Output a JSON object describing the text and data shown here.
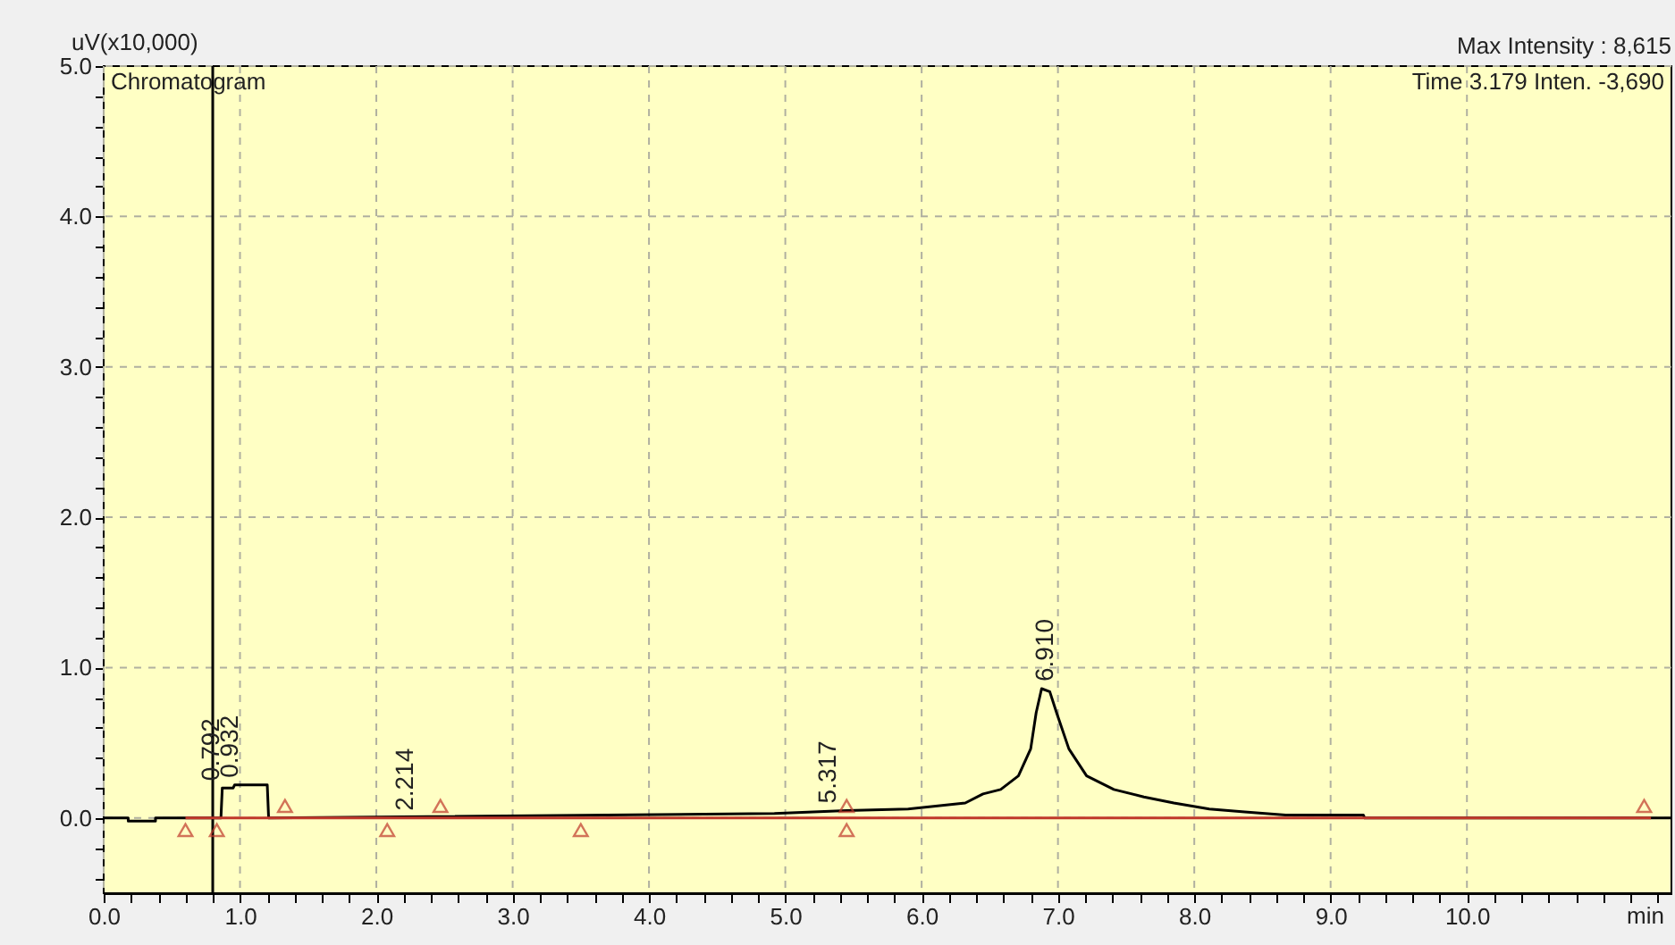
{
  "chart_data": {
    "type": "line",
    "title": "Chromatogram",
    "xlabel": "min",
    "ylabel": "uV(x10,000)",
    "annotations": [
      "Max Intensity :  8,615",
      "Time   3.179   Inten.   -3,690",
      {
        "text": "0.792",
        "x": 0.792,
        "y": 0.2
      },
      {
        "text": "0.932",
        "x": 0.932,
        "y": 0.22
      },
      {
        "text": "2.214",
        "x": 2.214,
        "y": 0.0
      },
      {
        "text": "5.317",
        "x": 5.317,
        "y": 0.05
      },
      {
        "text": "6.910",
        "x": 6.91,
        "y": 0.86
      }
    ],
    "series": [
      {
        "color": "#000000",
        "x": [
          0.0,
          0.18,
          0.18,
          0.38,
          0.38,
          0.86,
          0.87,
          0.95,
          0.96,
          1.2,
          1.21,
          4.92,
          5.45,
          5.9,
          6.32,
          6.45,
          6.58,
          6.71,
          6.8,
          6.84,
          6.88,
          6.94,
          6.99,
          7.08,
          7.21,
          7.41,
          7.63,
          7.85,
          8.11,
          8.37,
          8.67,
          9.24,
          9.25,
          11.5
        ],
        "values": [
          0.0,
          0.0,
          -0.02,
          -0.02,
          0.0,
          0.0,
          0.2,
          0.2,
          0.22,
          0.22,
          0.0,
          0.03,
          0.05,
          0.06,
          0.1,
          0.16,
          0.19,
          0.28,
          0.46,
          0.7,
          0.86,
          0.84,
          0.7,
          0.46,
          0.28,
          0.19,
          0.14,
          0.1,
          0.06,
          0.04,
          0.02,
          0.02,
          0.0,
          0.0
        ]
      },
      {
        "color": "#c0392b",
        "x": [
          0.6,
          11.35
        ],
        "values": [
          0.0,
          0.0
        ]
      },
      {
        "type": "scatter",
        "marker": "triangle",
        "color": "#c0392b",
        "x": [
          0.6,
          0.83,
          2.08,
          3.5,
          5.45
        ],
        "values": [
          -0.08,
          -0.08,
          -0.08,
          -0.08,
          -0.08
        ]
      },
      {
        "type": "scatter",
        "marker": "triangle",
        "color": "#c0392b",
        "x": [
          1.33,
          2.47,
          5.45,
          11.3
        ],
        "values": [
          0.08,
          0.08,
          0.08,
          0.08
        ]
      }
    ],
    "ref_lines": [
      {
        "axis": "x",
        "value": 0.8,
        "color": "#000000"
      }
    ],
    "xlim": [
      0,
      11.5
    ],
    "ylim": [
      -0.5,
      5.0
    ],
    "xticks": [
      {
        "value": 0,
        "label": "0.0"
      },
      {
        "value": 0.2,
        "label": null
      },
      {
        "value": 0.4,
        "label": null
      },
      {
        "value": 0.6,
        "label": null
      },
      {
        "value": 0.8,
        "label": null
      },
      {
        "value": 1,
        "label": "1.0"
      },
      {
        "value": 1.2,
        "label": null
      },
      {
        "value": 1.4,
        "label": null
      },
      {
        "value": 1.6,
        "label": null
      },
      {
        "value": 1.8,
        "label": null
      },
      {
        "value": 2,
        "label": "2.0"
      },
      {
        "value": 2.2,
        "label": null
      },
      {
        "value": 2.4,
        "label": null
      },
      {
        "value": 2.6,
        "label": null
      },
      {
        "value": 2.8,
        "label": null
      },
      {
        "value": 3,
        "label": "3.0"
      },
      {
        "value": 3.2,
        "label": null
      },
      {
        "value": 3.4,
        "label": null
      },
      {
        "value": 3.6,
        "label": null
      },
      {
        "value": 3.8,
        "label": null
      },
      {
        "value": 4,
        "label": "4.0"
      },
      {
        "value": 4.2,
        "label": null
      },
      {
        "value": 4.4,
        "label": null
      },
      {
        "value": 4.6,
        "label": null
      },
      {
        "value": 4.8,
        "label": null
      },
      {
        "value": 5,
        "label": "5.0"
      },
      {
        "value": 5.2,
        "label": null
      },
      {
        "value": 5.4,
        "label": null
      },
      {
        "value": 5.6,
        "label": null
      },
      {
        "value": 5.8,
        "label": null
      },
      {
        "value": 6,
        "label": "6.0"
      },
      {
        "value": 6.2,
        "label": null
      },
      {
        "value": 6.4,
        "label": null
      },
      {
        "value": 6.6,
        "label": null
      },
      {
        "value": 6.8,
        "label": null
      },
      {
        "value": 7,
        "label": "7.0"
      },
      {
        "value": 7.2,
        "label": null
      },
      {
        "value": 7.4,
        "label": null
      },
      {
        "value": 7.6,
        "label": null
      },
      {
        "value": 7.8,
        "label": null
      },
      {
        "value": 8,
        "label": "8.0"
      },
      {
        "value": 8.2,
        "label": null
      },
      {
        "value": 8.4,
        "label": null
      },
      {
        "value": 8.6,
        "label": null
      },
      {
        "value": 8.8,
        "label": null
      },
      {
        "value": 9,
        "label": "9.0"
      },
      {
        "value": 9.2,
        "label": null
      },
      {
        "value": 9.4,
        "label": null
      },
      {
        "value": 9.6,
        "label": null
      },
      {
        "value": 9.8,
        "label": null
      },
      {
        "value": 10,
        "label": "10.0"
      },
      {
        "value": 10.2,
        "label": null
      },
      {
        "value": 10.4,
        "label": null
      },
      {
        "value": 10.6,
        "label": null
      },
      {
        "value": 10.8,
        "label": null
      },
      {
        "value": 11,
        "label": null
      },
      {
        "value": 11.2,
        "label": null
      },
      {
        "value": 11.4,
        "label": null
      }
    ],
    "yticks": [
      {
        "value": -0.4,
        "label": null
      },
      {
        "value": -0.2,
        "label": null
      },
      {
        "value": 0,
        "label": "0.0"
      },
      {
        "value": 0.2,
        "label": null
      },
      {
        "value": 0.4,
        "label": null
      },
      {
        "value": 0.6,
        "label": null
      },
      {
        "value": 0.8,
        "label": null
      },
      {
        "value": 1,
        "label": "1.0"
      },
      {
        "value": 1.2,
        "label": null
      },
      {
        "value": 1.4,
        "label": null
      },
      {
        "value": 1.6,
        "label": null
      },
      {
        "value": 1.8,
        "label": null
      },
      {
        "value": 2,
        "label": "2.0"
      },
      {
        "value": 2.2,
        "label": null
      },
      {
        "value": 2.4,
        "label": null
      },
      {
        "value": 2.6,
        "label": null
      },
      {
        "value": 2.8,
        "label": null
      },
      {
        "value": 3,
        "label": "3.0"
      },
      {
        "value": 3.2,
        "label": null
      },
      {
        "value": 3.4,
        "label": null
      },
      {
        "value": 3.6,
        "label": null
      },
      {
        "value": 3.8,
        "label": null
      },
      {
        "value": 4,
        "label": "4.0"
      },
      {
        "value": 4.2,
        "label": null
      },
      {
        "value": 4.4,
        "label": null
      },
      {
        "value": 4.6,
        "label": null
      },
      {
        "value": 4.8,
        "label": null
      },
      {
        "value": 5,
        "label": "5.0"
      }
    ],
    "grid": true,
    "line_style": "solid"
  }
}
